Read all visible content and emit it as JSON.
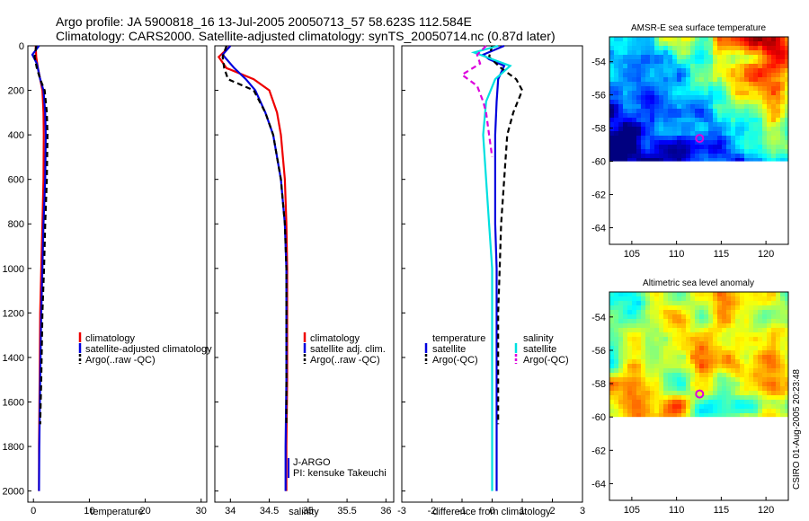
{
  "title_line1": "Argo profile: JA 5900818_16 13-Jul-2005 20050713_57 58.623S 112.584E",
  "title_line2": "Climatology: CARS2000. Satellite-adjusted climatology: synTS_20050714.nc (0.87d later)",
  "side_label": "CSIRO 01-Aug-2005 20:23:48",
  "colors": {
    "red": "#ee0000",
    "blue": "#0000dd",
    "black": "#000000",
    "cyan": "#00e0e0",
    "magenta": "#dd00dd"
  },
  "chart_data": [
    {
      "id": "temperature",
      "type": "line",
      "xlabel": "temperature",
      "xlim": [
        -1,
        31
      ],
      "ylim": [
        0,
        2050
      ],
      "xticks": [
        0,
        10,
        20,
        30
      ],
      "xtick_labels": [
        "0",
        "10",
        "20",
        "30"
      ],
      "yticks": [
        0,
        200,
        400,
        600,
        800,
        1000,
        1200,
        1400,
        1600,
        1800,
        2000
      ],
      "ytick_labels": [
        "0",
        "200",
        "400",
        "600",
        "800",
        "1000",
        "1200",
        "1400",
        "1600",
        "1800",
        "2000"
      ],
      "legend": [
        "climatology",
        "satellite-adjusted climatology",
        "Argo(..raw -QC)"
      ],
      "series": [
        {
          "name": "climatology",
          "color": "red",
          "dash": "",
          "x": [
            0.4,
            0.5,
            0.8,
            1.2,
            1.6,
            1.8,
            1.85,
            1.8,
            1.6,
            1.4,
            1.2,
            1.1,
            1.0,
            1.0
          ],
          "y": [
            0,
            50,
            100,
            150,
            200,
            300,
            400,
            600,
            800,
            1000,
            1200,
            1500,
            1800,
            2000
          ]
        },
        {
          "name": "satellite-adjusted climatology",
          "color": "blue",
          "dash": "",
          "x": [
            1.0,
            -0.2,
            0.6,
            1.2,
            1.8,
            2.1,
            2.2,
            2.1,
            1.8,
            1.6,
            1.4,
            1.2,
            1.05,
            1.0
          ],
          "y": [
            0,
            40,
            80,
            150,
            200,
            300,
            400,
            600,
            800,
            1000,
            1200,
            1500,
            1800,
            2000
          ]
        },
        {
          "name": "Argo(..raw -QC)",
          "color": "black",
          "dash": "6,4",
          "x": [
            0.5,
            0.2,
            0.6,
            1.2,
            2.0,
            2.4,
            2.5,
            2.4,
            2.1,
            1.9,
            1.6,
            1.4,
            1.2
          ],
          "y": [
            0,
            50,
            100,
            150,
            200,
            300,
            400,
            600,
            800,
            1000,
            1200,
            1500,
            1700
          ]
        }
      ]
    },
    {
      "id": "salinity",
      "type": "line",
      "xlabel": "salinity",
      "xlim": [
        33.8,
        36.1
      ],
      "ylim": [
        0,
        2050
      ],
      "xticks": [
        34,
        34.5,
        35,
        35.5,
        36
      ],
      "xtick_labels": [
        "34",
        "34.5",
        "35",
        "35.5",
        "36"
      ],
      "legend": [
        "climatology",
        "satellite adj. clim.",
        "Argo(..raw -QC)"
      ],
      "series": [
        {
          "name": "climatology",
          "color": "red",
          "dash": "",
          "x": [
            34.0,
            33.85,
            33.95,
            34.3,
            34.5,
            34.6,
            34.65,
            34.7,
            34.72,
            34.73,
            34.73,
            34.73,
            34.72,
            34.72
          ],
          "y": [
            0,
            50,
            100,
            150,
            200,
            300,
            400,
            600,
            800,
            1000,
            1200,
            1500,
            1800,
            2000
          ]
        },
        {
          "name": "satellite adj. clim.",
          "color": "blue",
          "dash": "",
          "x": [
            34.0,
            33.9,
            34.05,
            34.2,
            34.32,
            34.45,
            34.55,
            34.65,
            34.7,
            34.72,
            34.72,
            34.72,
            34.71,
            34.71
          ],
          "y": [
            0,
            40,
            100,
            150,
            200,
            300,
            400,
            600,
            800,
            1000,
            1200,
            1500,
            1800,
            2000
          ]
        },
        {
          "name": "Argo(..raw -QC)",
          "color": "black",
          "dash": "6,4",
          "x": [
            33.95,
            33.9,
            33.92,
            33.97,
            34.3,
            34.45,
            34.55,
            34.65,
            34.7,
            34.72,
            34.72,
            34.72,
            34.72
          ],
          "y": [
            0,
            50,
            100,
            150,
            200,
            300,
            400,
            600,
            800,
            1000,
            1200,
            1500,
            1700
          ]
        }
      ],
      "notes": [
        "J-ARGO",
        "PI: kensuke Takeuchi"
      ]
    },
    {
      "id": "difference",
      "type": "line",
      "xlabel": "difference from climatology",
      "xlim": [
        -3,
        3
      ],
      "ylim": [
        0,
        2050
      ],
      "xticks": [
        -3,
        -2,
        -1,
        0,
        1,
        2,
        3
      ],
      "xtick_labels": [
        "-3",
        "-2",
        "-1",
        "0",
        "1",
        "2",
        "3"
      ],
      "legend_temperature_title": "temperature",
      "legend_temperature": [
        "satellite",
        "Argo(-QC)"
      ],
      "legend_salinity_title": "salinity",
      "legend_salinity": [
        "satellite",
        "Argo(-QC)"
      ],
      "series": [
        {
          "name": "temperature satellite",
          "color": "blue",
          "dash": "",
          "x": [
            0.4,
            -0.3,
            -0.1,
            0.4,
            0.2,
            0.15,
            0.1,
            0.1,
            0.1,
            0.15,
            0.15,
            0.15,
            0.15,
            0.15,
            0.15
          ],
          "y": [
            0,
            40,
            60,
            90,
            150,
            250,
            400,
            600,
            800,
            1000,
            1200,
            1500,
            1800,
            1900,
            2000
          ]
        },
        {
          "name": "temperature Argo(-QC)",
          "color": "black",
          "dash": "6,4",
          "x": [
            0.0,
            -0.1,
            0.3,
            0.8,
            1.0,
            0.7,
            0.5,
            0.4,
            0.3,
            0.25,
            0.2,
            0.2,
            0.2
          ],
          "y": [
            0,
            50,
            100,
            150,
            200,
            300,
            400,
            600,
            800,
            1000,
            1200,
            1500,
            1700
          ]
        },
        {
          "name": "salinity satellite",
          "color": "cyan",
          "dash": "",
          "x": [
            0.2,
            -0.6,
            0.0,
            0.6,
            0.1,
            -0.2,
            -0.3,
            -0.2,
            -0.1,
            0.0,
            0.0,
            0.0,
            0.0,
            0.0
          ],
          "y": [
            0,
            30,
            60,
            90,
            150,
            250,
            400,
            600,
            800,
            1000,
            1200,
            1500,
            1800,
            2000
          ]
        },
        {
          "name": "salinity Argo(-QC)",
          "color": "magenta",
          "dash": "6,4",
          "x": [
            -0.2,
            -0.5,
            -0.4,
            -1.0,
            -0.5,
            -0.3,
            -0.2,
            -0.1,
            0.0
          ],
          "y": [
            0,
            40,
            80,
            130,
            180,
            250,
            300,
            400,
            500
          ]
        }
      ]
    },
    {
      "id": "sst_map",
      "type": "heatmap",
      "title": "AMSR-E sea surface temperature",
      "xlim": [
        102.5,
        122.5
      ],
      "ylim": [
        -65,
        -52.5
      ],
      "data_ylim": [
        -60,
        -52.5
      ],
      "xticks": [
        105,
        110,
        115,
        120
      ],
      "xtick_labels": [
        "105",
        "110",
        "115",
        "120"
      ],
      "yticks": [
        -54,
        -56,
        -58,
        -60,
        -62,
        -64
      ],
      "ytick_labels": [
        "-54",
        "-56",
        "-58",
        "-60",
        "-62",
        "-64"
      ],
      "marker": {
        "lon": 112.58,
        "lat": -58.62
      }
    },
    {
      "id": "ssh_map",
      "type": "heatmap",
      "title": "Altimetric sea level anomaly",
      "xlim": [
        102.5,
        122.5
      ],
      "ylim": [
        -65,
        -52.5
      ],
      "data_ylim": [
        -60,
        -52.5
      ],
      "xticks": [
        105,
        110,
        115,
        120
      ],
      "xtick_labels": [
        "105",
        "110",
        "115",
        "120"
      ],
      "yticks": [
        -54,
        -56,
        -58,
        -60,
        -62,
        -64
      ],
      "ytick_labels": [
        "-54",
        "-56",
        "-58",
        "-60",
        "-62",
        "-64"
      ],
      "marker": {
        "lon": 112.58,
        "lat": -58.62
      }
    }
  ]
}
